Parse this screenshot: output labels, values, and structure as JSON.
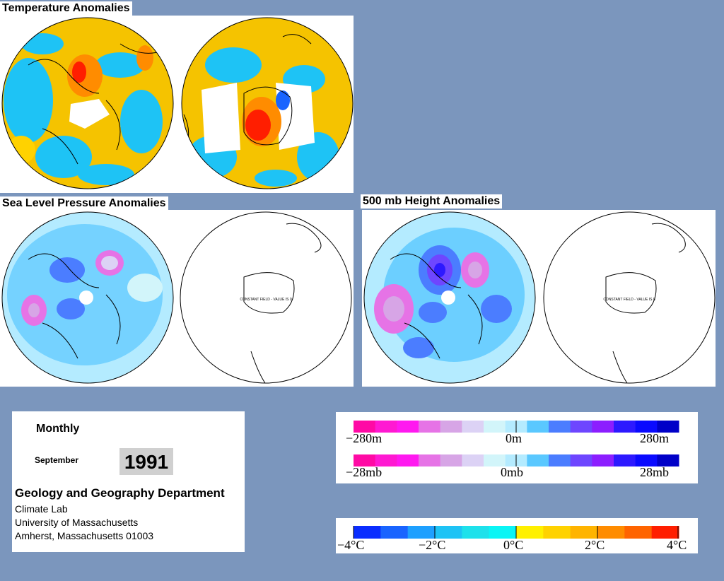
{
  "titles": {
    "temperature": "Temperature Anomalies",
    "slp": "Sea Level Pressure Anomalies",
    "height": "500 mb Height Anomalies"
  },
  "map_annotation": "CONSTANT FIELD - VALUE IS 0",
  "info": {
    "period": "Monthly",
    "month": "September",
    "year": "1991",
    "department": "Geology and Geography Department",
    "lines": [
      "Climate Lab",
      "University of Massachusetts",
      "Amherst, Massachusetts 01003"
    ]
  },
  "legends": {
    "height": {
      "min": "−280m",
      "mid": "0m",
      "max": "280m"
    },
    "pressure": {
      "min": "−28mb",
      "mid": "0mb",
      "max": "28mb"
    },
    "temperature": {
      "labels": [
        "−4°C",
        "−2°C",
        "0°C",
        "2°C",
        "4°C"
      ]
    }
  },
  "colors": {
    "background": "#7b96bd",
    "anomaly_scale": [
      "#ff0aa5",
      "#ff19d2",
      "#ff19f0",
      "#e673e6",
      "#d7a5e6",
      "#dcd2f5",
      "#d2f5fa",
      "#b4ebff",
      "#5ac8ff",
      "#4b7dff",
      "#6e46ff",
      "#8c1eff",
      "#2d19ff",
      "#0a0aff",
      "#0000c8"
    ],
    "temperature_scale": [
      "#0a2dff",
      "#1964ff",
      "#1ea0ff",
      "#1ec3f5",
      "#1ee1eb",
      "#0af5f5",
      "#fff000",
      "#ffd200",
      "#ffb400",
      "#ff8c00",
      "#ff6400",
      "#ff1e00"
    ]
  }
}
